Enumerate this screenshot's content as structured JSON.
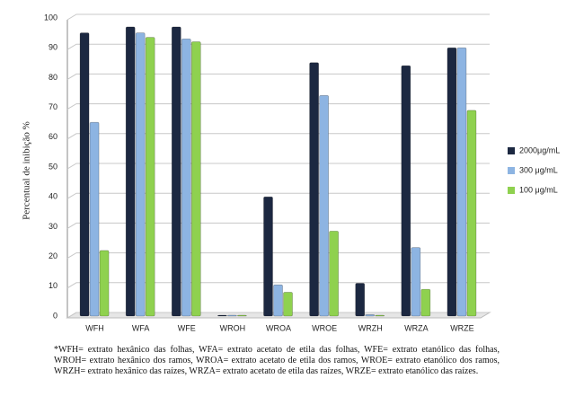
{
  "chart_data": {
    "type": "bar",
    "y_label": "Percentual de inibição %",
    "categories": [
      "WFH",
      "WFA",
      "WFE",
      "WROH",
      "WROA",
      "WROE",
      "WRZH",
      "WRZA",
      "WRZE"
    ],
    "series": [
      {
        "name": "2000μg/mL",
        "color": "#1c2841",
        "values": [
          95,
          97,
          97,
          0.3,
          40,
          85,
          11,
          84,
          90
        ]
      },
      {
        "name": "300 μg/mL",
        "color": "#8db4e2",
        "values": [
          65,
          95,
          93,
          0.3,
          10.5,
          74,
          0.5,
          23,
          90
        ]
      },
      {
        "name": "100 μg/mL",
        "color": "#8fd14f",
        "values": [
          22,
          93.5,
          92,
          0.3,
          8,
          28.5,
          0.3,
          9,
          69
        ]
      }
    ],
    "ylim": [
      0,
      100
    ],
    "yticks": [
      0,
      10,
      20,
      30,
      40,
      50,
      60,
      70,
      80,
      90,
      100
    ],
    "grid": true,
    "legend": "right",
    "note": "*WFH= extrato hexânico das folhas, WFA= extrato acetato de etila das folhas, WFE= extrato etanólico das folhas, WROH= extrato hexânico dos ramos, WROA= extrato acetato de etila dos ramos, WROE= extrato etanólico dos ramos, WRZH= extrato hexânico das raízes, WRZA= extrato acetato de etila das raízes, WRZE= extrato etanólico das raízes."
  }
}
